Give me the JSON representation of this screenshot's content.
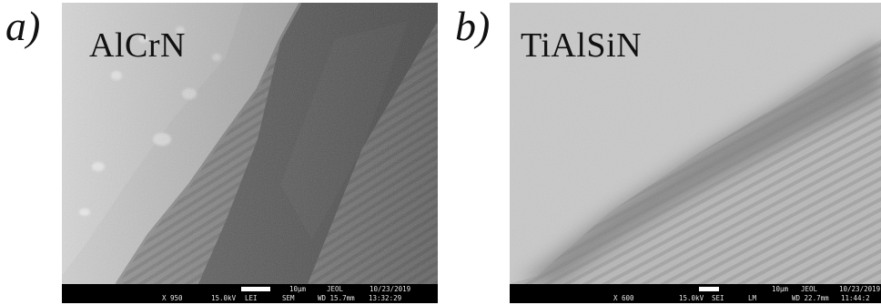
{
  "figure": {
    "panels": [
      {
        "letter": "a)",
        "label": "AlCrN",
        "databar": {
          "scale": "10µm",
          "maker": "JEOL",
          "date": "10/23/2019",
          "magnification": "X 950",
          "voltage": "15.0kV",
          "detector": "LEI",
          "mode": "SEM",
          "wd": "WD 15.7mm",
          "time": "13:32:29"
        }
      },
      {
        "letter": "b)",
        "label": "TiAlSiN",
        "databar": {
          "scale": "10µm",
          "maker": "JEOL",
          "date": "10/23/2019",
          "magnification": "X 600",
          "voltage": "15.0kV",
          "detector": "SEI",
          "mode": "LM",
          "wd": "WD 22.7mm",
          "time": "11:44:2"
        }
      }
    ]
  }
}
